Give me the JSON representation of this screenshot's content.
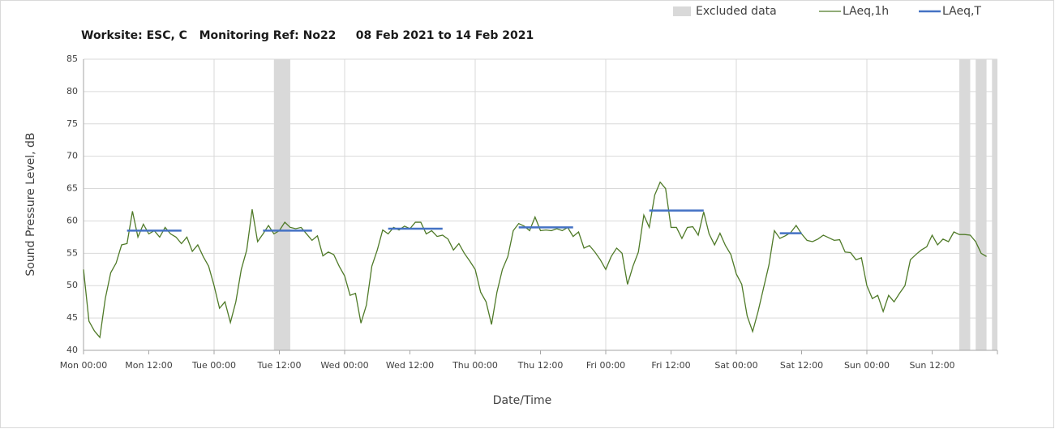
{
  "chart_data": {
    "type": "line",
    "title": "Worksite: ESC, C   Monitoring Ref: No22     08 Feb 2021 to 14 Feb 2021",
    "x_label": "Date/Time",
    "y_label": "Sound Pressure Level, dB",
    "xlim": [
      0,
      168
    ],
    "xticks": [
      {
        "value": 0,
        "label": "Mon 00:00"
      },
      {
        "value": 12,
        "label": "Mon 12:00"
      },
      {
        "value": 24,
        "label": "Tue 00:00"
      },
      {
        "value": 36,
        "label": "Tue 12:00"
      },
      {
        "value": 48,
        "label": "Wed 00:00"
      },
      {
        "value": 60,
        "label": "Wed 12:00"
      },
      {
        "value": 72,
        "label": "Thu 00:00"
      },
      {
        "value": 84,
        "label": "Thu 12:00"
      },
      {
        "value": 96,
        "label": "Fri 00:00"
      },
      {
        "value": 108,
        "label": "Fri 12:00"
      },
      {
        "value": 120,
        "label": "Sat 00:00"
      },
      {
        "value": 132,
        "label": "Sat 12:00"
      },
      {
        "value": 144,
        "label": "Sun 00:00"
      },
      {
        "value": 156,
        "label": "Sun 12:00"
      }
    ],
    "ylim": [
      40,
      85
    ],
    "yticks": [
      40,
      45,
      50,
      55,
      60,
      65,
      70,
      75,
      80,
      85
    ],
    "grid": true,
    "legend": "top-right",
    "series": [
      {
        "name": "Excluded data",
        "color": "#d9d9d9",
        "ranges": [
          [
            35,
            38
          ],
          [
            161,
            163
          ],
          [
            164,
            166
          ],
          [
            167,
            168
          ]
        ]
      },
      {
        "name": "LAeq,1h",
        "color": "#4f7a28",
        "x": [
          0,
          1,
          2,
          3,
          4,
          5,
          6,
          7,
          8,
          9,
          10,
          11,
          12,
          13,
          14,
          15,
          16,
          17,
          18,
          19,
          20,
          21,
          22,
          23,
          24,
          25,
          26,
          27,
          28,
          29,
          30,
          31,
          32,
          33,
          34,
          35,
          36,
          37,
          38,
          39,
          40,
          41,
          42,
          43,
          44,
          45,
          46,
          47,
          48,
          49,
          50,
          51,
          52,
          53,
          54,
          55,
          56,
          57,
          58,
          59,
          60,
          61,
          62,
          63,
          64,
          65,
          66,
          67,
          68,
          69,
          70,
          71,
          72,
          73,
          74,
          75,
          76,
          77,
          78,
          79,
          80,
          81,
          82,
          83,
          84,
          85,
          86,
          87,
          88,
          89,
          90,
          91,
          92,
          93,
          94,
          95,
          96,
          97,
          98,
          99,
          100,
          101,
          102,
          103,
          104,
          105,
          106,
          107,
          108,
          109,
          110,
          111,
          112,
          113,
          114,
          115,
          116,
          117,
          118,
          119,
          120,
          121,
          122,
          123,
          124,
          125,
          126,
          127,
          128,
          129,
          130,
          131,
          132,
          133,
          134,
          135,
          136,
          137,
          138,
          139,
          140,
          141,
          142,
          143,
          144,
          145,
          146,
          147,
          148,
          149,
          150,
          151,
          152,
          153,
          154,
          155,
          156,
          157,
          158,
          159,
          160,
          161,
          162,
          163,
          164,
          165,
          166
        ],
        "values": [
          52.5,
          44.5,
          43,
          42,
          48,
          52,
          53.5,
          56.3,
          56.5,
          61.5,
          57.5,
          59.5,
          58,
          58.5,
          57.5,
          59,
          58,
          57.5,
          56.5,
          57.5,
          55.3,
          56.3,
          54.5,
          53,
          50,
          46.5,
          47.5,
          44.3,
          47.5,
          52.5,
          55.5,
          61.8,
          56.8,
          58,
          59.3,
          58,
          58.5,
          59.8,
          59,
          58.8,
          59,
          58,
          57,
          57.7,
          54.6,
          55.2,
          54.8,
          53,
          51.5,
          48.5,
          48.8,
          44.2,
          47,
          53,
          55.5,
          58.6,
          58,
          59,
          58.6,
          59.2,
          58.8,
          59.8,
          59.8,
          58,
          58.5,
          57.6,
          57.8,
          57.2,
          55.5,
          56.5,
          55,
          53.8,
          52.5,
          49,
          47.5,
          44,
          49,
          52.5,
          54.5,
          58.5,
          59.6,
          59.2,
          58.5,
          60.6,
          58.5,
          58.6,
          58.5,
          58.8,
          58.5,
          59,
          57.6,
          58.3,
          55.8,
          56.2,
          55.2,
          54,
          52.5,
          54.5,
          55.8,
          55,
          50.2,
          53,
          55.2,
          60.9,
          59,
          64,
          66,
          65,
          59,
          59,
          57.3,
          59,
          59.1,
          57.8,
          61.4,
          58,
          56.3,
          58.1,
          56.2,
          54.8,
          51.8,
          50.2,
          45.3,
          42.9,
          46,
          49.6,
          53.2,
          58.5,
          57.3,
          57.7,
          58.2,
          59.3,
          58,
          57,
          56.8,
          57.2,
          57.8,
          57.4,
          57,
          57.1,
          55.2,
          55.1,
          54,
          54.3,
          50,
          48,
          48.5,
          46,
          48.5,
          47.5,
          48.8,
          50,
          54,
          54.8,
          55.5,
          56,
          57.8,
          56.3,
          57.2,
          56.8,
          58.3,
          57.9,
          57.9,
          57.8,
          56.8,
          55,
          54.5
        ]
      },
      {
        "name": "LAeq,T",
        "color": "#4472c4",
        "segments": [
          {
            "x": [
              8,
              18
            ],
            "value": 58.5
          },
          {
            "x": [
              33,
              42
            ],
            "value": 58.5
          },
          {
            "x": [
              56,
              66
            ],
            "value": 58.8
          },
          {
            "x": [
              80,
              90
            ],
            "value": 59
          },
          {
            "x": [
              104,
              114
            ],
            "value": 61.6
          },
          {
            "x": [
              128,
              132
            ],
            "value": 58.1
          }
        ]
      }
    ]
  }
}
